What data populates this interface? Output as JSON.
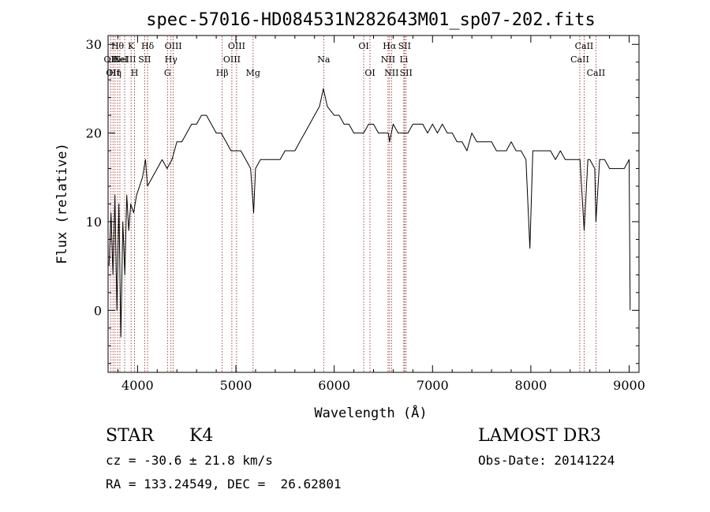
{
  "chart_data": {
    "type": "line",
    "title": "spec-57016-HD084531N282643M01_sp07-202.fits",
    "xlabel": "Wavelength (Å)",
    "ylabel": "Flux (relative)",
    "xlim": [
      3700,
      9100
    ],
    "ylim": [
      -7,
      31
    ],
    "xticks": [
      4000,
      5000,
      6000,
      7000,
      8000,
      9000
    ],
    "yticks": [
      0,
      10,
      20,
      30
    ],
    "line_color": "#000000",
    "marker_color": "#8b1a1a",
    "series": [
      {
        "values": [
          [
            3710,
            5
          ],
          [
            3730,
            11
          ],
          [
            3750,
            4
          ],
          [
            3770,
            13
          ],
          [
            3790,
            0
          ],
          [
            3810,
            12
          ],
          [
            3830,
            -3
          ],
          [
            3850,
            10
          ],
          [
            3870,
            4
          ],
          [
            3890,
            13
          ],
          [
            3910,
            9
          ],
          [
            3930,
            12
          ],
          [
            3960,
            11
          ],
          [
            3990,
            13
          ],
          [
            4020,
            14
          ],
          [
            4050,
            15
          ],
          [
            4080,
            17
          ],
          [
            4100,
            14
          ],
          [
            4150,
            15
          ],
          [
            4200,
            16
          ],
          [
            4250,
            17
          ],
          [
            4300,
            16
          ],
          [
            4350,
            17
          ],
          [
            4400,
            19
          ],
          [
            4450,
            19
          ],
          [
            4500,
            20
          ],
          [
            4550,
            21
          ],
          [
            4600,
            21
          ],
          [
            4650,
            22
          ],
          [
            4700,
            22
          ],
          [
            4750,
            21
          ],
          [
            4800,
            20
          ],
          [
            4850,
            20
          ],
          [
            4900,
            19
          ],
          [
            4950,
            18
          ],
          [
            5000,
            18
          ],
          [
            5050,
            18
          ],
          [
            5100,
            17
          ],
          [
            5150,
            16
          ],
          [
            5180,
            11
          ],
          [
            5200,
            16
          ],
          [
            5250,
            17
          ],
          [
            5300,
            17
          ],
          [
            5350,
            17
          ],
          [
            5400,
            17
          ],
          [
            5450,
            17
          ],
          [
            5500,
            18
          ],
          [
            5550,
            18
          ],
          [
            5600,
            18
          ],
          [
            5650,
            19
          ],
          [
            5700,
            20
          ],
          [
            5750,
            21
          ],
          [
            5800,
            22
          ],
          [
            5850,
            23
          ],
          [
            5890,
            25
          ],
          [
            5930,
            23
          ],
          [
            6000,
            22
          ],
          [
            6050,
            22
          ],
          [
            6100,
            21
          ],
          [
            6150,
            21
          ],
          [
            6200,
            20
          ],
          [
            6250,
            20
          ],
          [
            6300,
            20
          ],
          [
            6350,
            21
          ],
          [
            6400,
            21
          ],
          [
            6450,
            20
          ],
          [
            6500,
            20
          ],
          [
            6550,
            20
          ],
          [
            6563,
            19
          ],
          [
            6600,
            21
          ],
          [
            6650,
            20
          ],
          [
            6700,
            20
          ],
          [
            6750,
            20
          ],
          [
            6800,
            21
          ],
          [
            6850,
            21
          ],
          [
            6900,
            21
          ],
          [
            6950,
            20
          ],
          [
            7000,
            21
          ],
          [
            7050,
            20
          ],
          [
            7100,
            21
          ],
          [
            7150,
            20
          ],
          [
            7200,
            20
          ],
          [
            7250,
            19
          ],
          [
            7300,
            19
          ],
          [
            7350,
            18
          ],
          [
            7400,
            20
          ],
          [
            7450,
            19
          ],
          [
            7500,
            19
          ],
          [
            7550,
            19
          ],
          [
            7600,
            19
          ],
          [
            7650,
            18
          ],
          [
            7700,
            18
          ],
          [
            7750,
            18
          ],
          [
            7800,
            19
          ],
          [
            7850,
            18
          ],
          [
            7900,
            18
          ],
          [
            7950,
            17
          ],
          [
            7990,
            7
          ],
          [
            8020,
            18
          ],
          [
            8050,
            18
          ],
          [
            8100,
            18
          ],
          [
            8150,
            18
          ],
          [
            8200,
            18
          ],
          [
            8250,
            17
          ],
          [
            8300,
            18
          ],
          [
            8350,
            17
          ],
          [
            8400,
            17
          ],
          [
            8450,
            17
          ],
          [
            8500,
            17
          ],
          [
            8542,
            9
          ],
          [
            8580,
            17
          ],
          [
            8600,
            17
          ],
          [
            8650,
            16
          ],
          [
            8662,
            10
          ],
          [
            8700,
            17
          ],
          [
            8750,
            17
          ],
          [
            8800,
            16
          ],
          [
            8850,
            16
          ],
          [
            8900,
            16
          ],
          [
            8950,
            16
          ],
          [
            9000,
            17
          ],
          [
            9010,
            0
          ]
        ]
      }
    ],
    "line_markers": [
      {
        "wavelength": 3727,
        "label": "OII",
        "row": 2
      },
      {
        "wavelength": 3750,
        "label": "OII",
        "row": 3
      },
      {
        "wavelength": 3771,
        "label": "Hη",
        "row": 3
      },
      {
        "wavelength": 3797,
        "label": "Hθ",
        "row": 1
      },
      {
        "wavelength": 3820,
        "label": "HeI",
        "row": 2
      },
      {
        "wavelength": 3869,
        "label": "NeIII",
        "row": 2
      },
      {
        "wavelength": 3934,
        "label": "K",
        "row": 1
      },
      {
        "wavelength": 3969,
        "label": "H",
        "row": 3
      },
      {
        "wavelength": 4072,
        "label": "SII",
        "row": 2
      },
      {
        "wavelength": 4102,
        "label": "Hδ",
        "row": 1
      },
      {
        "wavelength": 4304,
        "label": "G",
        "row": 3
      },
      {
        "wavelength": 4340,
        "label": "Hγ",
        "row": 2
      },
      {
        "wavelength": 4363,
        "label": "OIII",
        "row": 1
      },
      {
        "wavelength": 4861,
        "label": "Hβ",
        "row": 3
      },
      {
        "wavelength": 4959,
        "label": "OIII",
        "row": 2
      },
      {
        "wavelength": 5007,
        "label": "OIII",
        "row": 1
      },
      {
        "wavelength": 5175,
        "label": "Mg",
        "row": 3
      },
      {
        "wavelength": 5893,
        "label": "Na",
        "row": 2
      },
      {
        "wavelength": 6300,
        "label": "OI",
        "row": 1
      },
      {
        "wavelength": 6364,
        "label": "OI",
        "row": 3
      },
      {
        "wavelength": 6548,
        "label": "NII",
        "row": 2
      },
      {
        "wavelength": 6563,
        "label": "Hα",
        "row": 1
      },
      {
        "wavelength": 6583,
        "label": "NII",
        "row": 3
      },
      {
        "wavelength": 6708,
        "label": "Li",
        "row": 2
      },
      {
        "wavelength": 6716,
        "label": "SII",
        "row": 1
      },
      {
        "wavelength": 6731,
        "label": "SII",
        "row": 3
      },
      {
        "wavelength": 8498,
        "label": "CaII",
        "row": 2
      },
      {
        "wavelength": 8542,
        "label": "CaII",
        "row": 1
      },
      {
        "wavelength": 8662,
        "label": "CaII",
        "row": 3
      }
    ]
  },
  "info": {
    "object_class": "STAR",
    "subclass": "K4",
    "survey": "LAMOST DR3",
    "redshift_line": "cz = -30.6 ± 21.8 km/s",
    "obs_date_line": "Obs-Date: 20141224",
    "coords_line": "RA = 133.24549, DEC =  26.62801"
  }
}
